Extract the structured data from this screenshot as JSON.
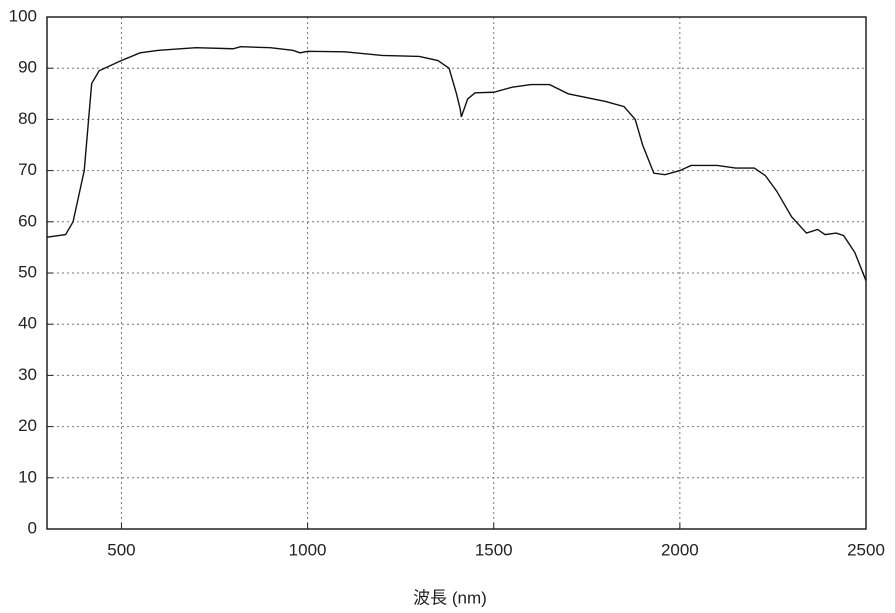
{
  "chart_data": {
    "type": "line",
    "x_label": "波長 (nm)",
    "x": [
      300,
      350,
      370,
      400,
      420,
      440,
      500,
      550,
      600,
      700,
      800,
      820,
      900,
      960,
      980,
      1000,
      1100,
      1200,
      1300,
      1350,
      1380,
      1400,
      1410,
      1413,
      1430,
      1450,
      1500,
      1550,
      1600,
      1650,
      1700,
      1800,
      1850,
      1880,
      1900,
      1930,
      1960,
      2000,
      2030,
      2100,
      2150,
      2200,
      2230,
      2260,
      2300,
      2340,
      2370,
      2390,
      2420,
      2440,
      2470,
      2500
    ],
    "series": [
      {
        "color": "#111111",
        "values": [
          57,
          57.5,
          60,
          70,
          87,
          89.5,
          91.5,
          93,
          93.5,
          94,
          93.8,
          94.2,
          94,
          93.5,
          93,
          93.3,
          93.2,
          92.5,
          92.3,
          91.5,
          90,
          85,
          82,
          80.5,
          84,
          85.2,
          85.3,
          86.3,
          86.8,
          86.8,
          85,
          83.5,
          82.5,
          80,
          75,
          69.5,
          69.2,
          70,
          71,
          71,
          70.5,
          70.5,
          69,
          66,
          61,
          57.8,
          58.5,
          57.5,
          57.8,
          57.3,
          54,
          48.5
        ]
      }
    ],
    "xlim": [
      300,
      2500
    ],
    "xticks": [
      500,
      1000,
      1500,
      2000,
      2500
    ],
    "ylim": [
      0,
      100
    ],
    "yticks": [
      0,
      10,
      20,
      30,
      40,
      50,
      60,
      70,
      80,
      90,
      100
    ],
    "grid": true
  }
}
